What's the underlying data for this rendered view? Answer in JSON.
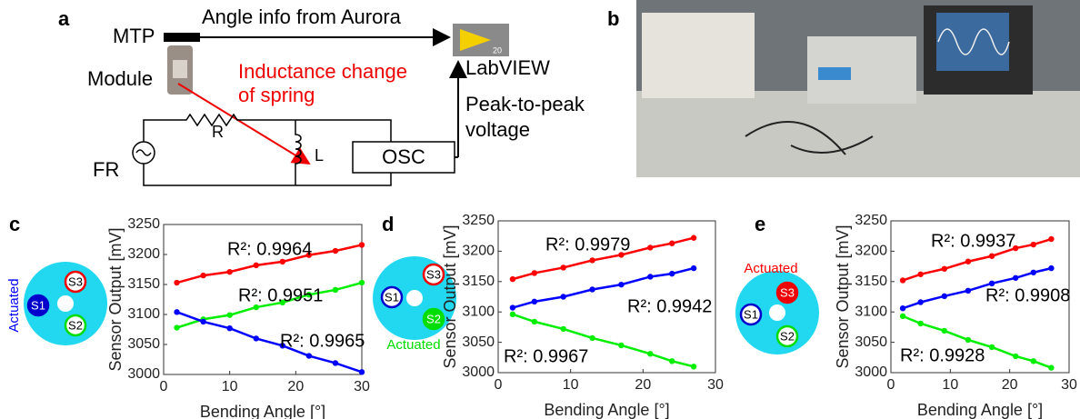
{
  "panel_labels": [
    "a",
    "b",
    "c",
    "d",
    "e"
  ],
  "diagram": {
    "mtp": "MTP",
    "angle_info": "Angle info from Aurora",
    "module": "Module",
    "inductance": [
      "Inductance change",
      "of spring"
    ],
    "r": "R",
    "l": "L",
    "fr": "FR",
    "osc": "OSC",
    "labview": "LabVIEW",
    "labview_icon": "20",
    "peak": [
      "Peak-to-peak",
      "voltage"
    ]
  },
  "sensor_icons": [
    {
      "actuated": "Actuated",
      "s1": "S1",
      "s2": "S2",
      "s3": "S3"
    },
    {
      "actuated": "Actuated",
      "s1": "S1",
      "s2": "S2",
      "s3": "S3"
    },
    {
      "actuated": "Actuated",
      "s1": "S1",
      "s2": "S2",
      "s3": "S3"
    }
  ],
  "chart_data": [
    {
      "type": "scatter",
      "x_label": "Bending Angle [°]",
      "y_label": "Sensor Output [mV]",
      "xlim": [
        0,
        30
      ],
      "xticks": [
        0,
        10,
        20,
        30
      ],
      "ylim": [
        3000,
        3250
      ],
      "yticks": [
        3000,
        3050,
        3100,
        3150,
        3200,
        3250
      ],
      "series": [
        {
          "color": "#ff0000",
          "x": [
            2,
            6,
            10,
            14,
            18,
            22,
            26,
            30
          ],
          "values": [
            3153,
            3165,
            3171,
            3182,
            3188,
            3199,
            3206,
            3216
          ]
        },
        {
          "color": "#00ee00",
          "x": [
            2,
            6,
            10,
            14,
            18,
            22,
            26,
            30
          ],
          "values": [
            3078,
            3092,
            3099,
            3112,
            3120,
            3133,
            3141,
            3153
          ]
        },
        {
          "color": "#0000ff",
          "x": [
            2,
            6,
            10,
            14,
            18,
            22,
            26,
            30
          ],
          "values": [
            3104,
            3088,
            3077,
            3060,
            3048,
            3031,
            3019,
            3004
          ]
        }
      ],
      "annotations": [
        "R²: 0.9964",
        "R²: 0.9951",
        "R²: 0.9965"
      ]
    },
    {
      "type": "scatter",
      "x_label": "Bending Angle [°]",
      "y_label": "Sensor Output [mV]",
      "xlim": [
        0,
        30
      ],
      "xticks": [
        0,
        10,
        20,
        30
      ],
      "ylim": [
        3000,
        3250
      ],
      "yticks": [
        3000,
        3050,
        3100,
        3150,
        3200,
        3250
      ],
      "series": [
        {
          "color": "#ff0000",
          "x": [
            2,
            5,
            9,
            13,
            17,
            21,
            24,
            27
          ],
          "values": [
            3154,
            3164,
            3173,
            3185,
            3194,
            3206,
            3213,
            3222
          ]
        },
        {
          "color": "#0000ff",
          "x": [
            2,
            5,
            9,
            13,
            17,
            21,
            24,
            27
          ],
          "values": [
            3107,
            3117,
            3125,
            3137,
            3145,
            3158,
            3163,
            3172
          ]
        },
        {
          "color": "#00ee00",
          "x": [
            2,
            5,
            9,
            13,
            17,
            21,
            24,
            27
          ],
          "values": [
            3096,
            3084,
            3072,
            3057,
            3045,
            3031,
            3019,
            3010
          ]
        }
      ],
      "annotations": [
        "R²: 0.9979",
        "R²: 0.9942",
        "R²: 0.9967"
      ]
    },
    {
      "type": "scatter",
      "x_label": "Bending Angle [°]",
      "y_label": "Sensor Output [mV]",
      "xlim": [
        0,
        30
      ],
      "xticks": [
        0,
        10,
        20,
        30
      ],
      "ylim": [
        3000,
        3250
      ],
      "yticks": [
        3000,
        3050,
        3100,
        3150,
        3200,
        3250
      ],
      "series": [
        {
          "color": "#ff0000",
          "x": [
            2,
            5,
            9,
            13,
            17,
            21,
            24,
            27
          ],
          "values": [
            3152,
            3162,
            3171,
            3183,
            3192,
            3205,
            3211,
            3220
          ]
        },
        {
          "color": "#0000ff",
          "x": [
            2,
            5,
            9,
            13,
            17,
            21,
            24,
            27
          ],
          "values": [
            3106,
            3116,
            3126,
            3135,
            3147,
            3156,
            3165,
            3172
          ]
        },
        {
          "color": "#00ee00",
          "x": [
            2,
            5,
            9,
            13,
            17,
            21,
            24,
            27
          ],
          "values": [
            3093,
            3081,
            3069,
            3054,
            3042,
            3027,
            3019,
            3008
          ]
        }
      ],
      "annotations": [
        "R²: 0.9937",
        "R²: 0.9908",
        "R²: 0.9928"
      ]
    }
  ]
}
